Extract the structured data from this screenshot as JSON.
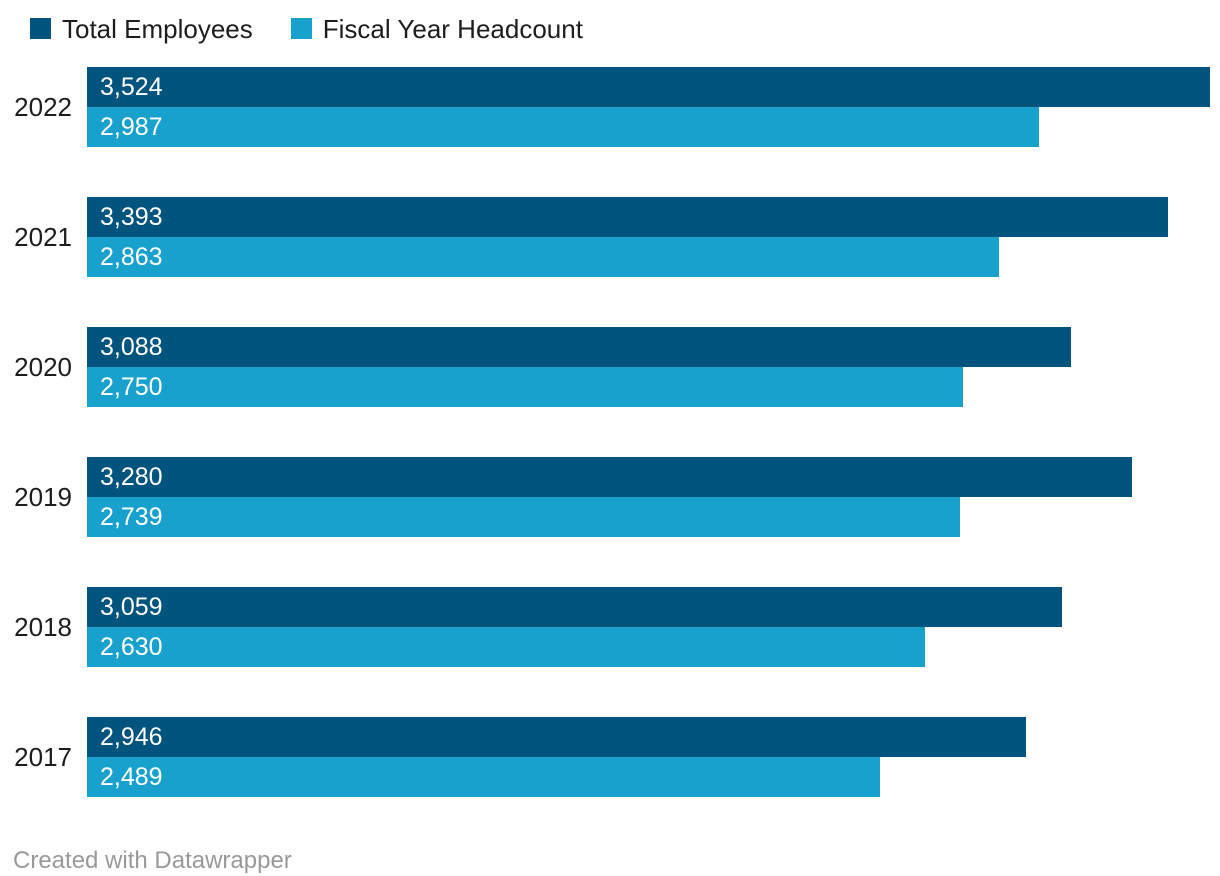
{
  "legend": {
    "items": [
      {
        "id": "total-employees",
        "label": "Total Employees",
        "color": "#00547e"
      },
      {
        "id": "fiscal-year-headcount",
        "label": "Fiscal Year Headcount",
        "color": "#18a1cd"
      }
    ]
  },
  "chart_data": {
    "type": "bar",
    "orientation": "horizontal",
    "title": "",
    "categories": [
      "2022",
      "2021",
      "2020",
      "2019",
      "2018",
      "2017"
    ],
    "series": [
      {
        "name": "Total Employees",
        "color": "#00547e",
        "values": [
          3524,
          3393,
          3088,
          3280,
          3059,
          2946
        ],
        "labels": [
          "3,524",
          "3,393",
          "3,088",
          "3,280",
          "3,059",
          "2,946"
        ]
      },
      {
        "name": "Fiscal Year Headcount",
        "color": "#18a1cd",
        "values": [
          2987,
          2863,
          2750,
          2739,
          2630,
          2489
        ],
        "labels": [
          "2,987",
          "2,863",
          "2,750",
          "2,739",
          "2,630",
          "2,489"
        ]
      }
    ],
    "xlim": [
      0,
      3524
    ],
    "grid": false,
    "legend_position": "top-left",
    "value_labels_inside": true
  },
  "footer": {
    "credit": "Created with Datawrapper"
  },
  "colors": {
    "background": "#ffffff",
    "year_label": "#1d1d1d",
    "value_label": "#ffffff",
    "footer_text": "#999999"
  }
}
